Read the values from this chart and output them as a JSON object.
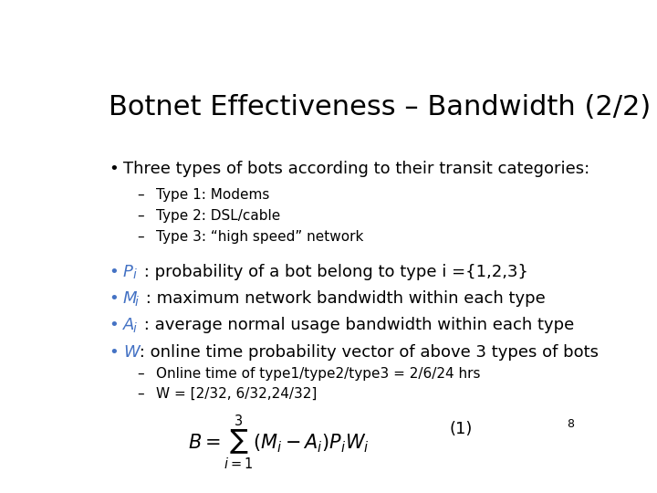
{
  "title": "Botnet Effectiveness – Bandwidth (2/2)",
  "title_fontsize": 22,
  "background_color": "#ffffff",
  "text_color": "#000000",
  "accent_color": "#4472C4",
  "page_number": "8",
  "bullet1_text": "Three types of bots according to their transit categories:",
  "bullet1_fontsize": 13,
  "sub1_items": [
    "Type 1: Modems",
    "Type 2: DSL/cable",
    "Type 3: “high speed” network"
  ],
  "sub1_fontsize": 11,
  "bullets": [
    {
      "prefix": "P",
      "prefix_sub": "i",
      "rest": " : probability of a bot belong to type i ={1,2,3}"
    },
    {
      "prefix": "M",
      "prefix_sub": "i",
      "rest": " : maximum network bandwidth within each type"
    },
    {
      "prefix": "A",
      "prefix_sub": "i",
      "rest": " : average normal usage bandwidth within each type"
    },
    {
      "prefix": "W",
      "prefix_sub": "",
      "rest": " : online time probability vector of above 3 types of bots"
    }
  ],
  "bullet_fontsize": 13,
  "sub2_items": [
    "Online time of type1/type2/type3 = 2/6/24 hrs",
    "W = [2/32, 6/32,24/32]"
  ],
  "sub2_fontsize": 11,
  "formula": "$B = \\sum_{i=1}^{3}(M_i - A_i)P_i W_i$",
  "formula_label": "(1)",
  "formula_fontsize": 15
}
